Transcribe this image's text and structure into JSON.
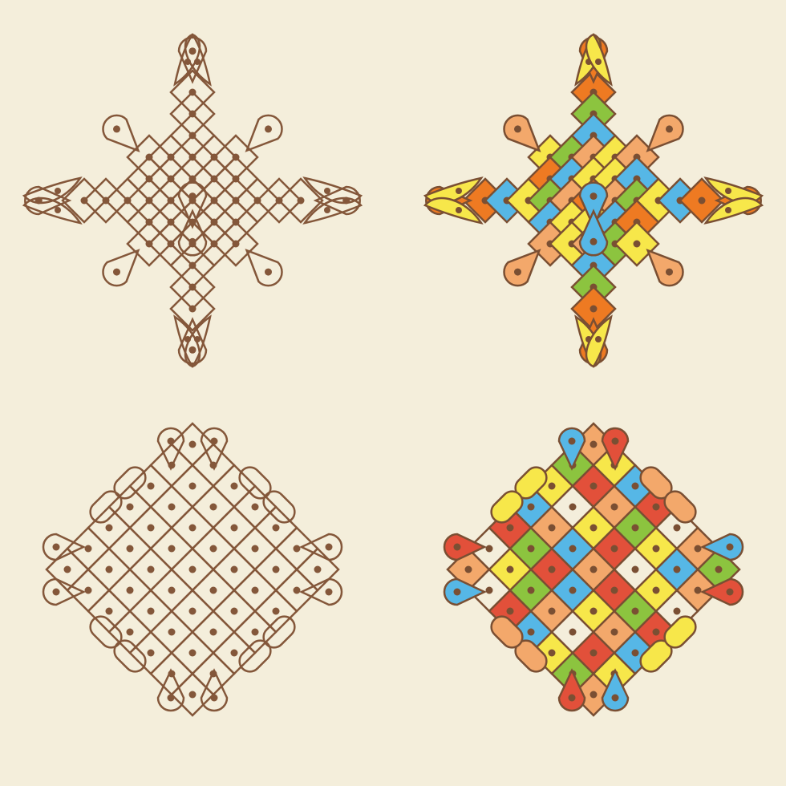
{
  "background_color": "#f4eedb",
  "line_color": "#84573a",
  "stroke_color": "#7a4f33",
  "palette": {
    "orange": "#ee7a22",
    "light_orange": "#f3a86b",
    "yellow": "#f7e74a",
    "green": "#8cc43f",
    "blue": "#56b7e6",
    "red": "#e2503a",
    "cream": "#f4eedb"
  },
  "kolams": [
    {
      "name": "kolam-top-left",
      "variant": "diamond-fish",
      "filled": false,
      "dot_icon": "dot-icon"
    },
    {
      "name": "kolam-top-right",
      "variant": "diamond-fish",
      "filled": true,
      "dot_icon": "dot-icon"
    },
    {
      "name": "kolam-bottom-left",
      "variant": "square-loops",
      "filled": false,
      "dot_icon": "dot-icon"
    },
    {
      "name": "kolam-bottom-right",
      "variant": "square-loops",
      "filled": true,
      "dot_icon": "dot-icon"
    }
  ]
}
